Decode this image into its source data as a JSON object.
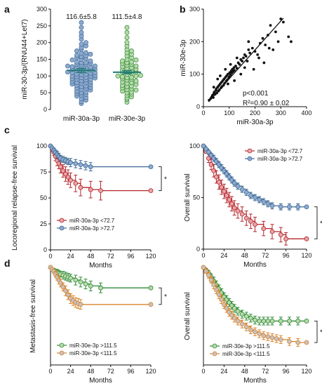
{
  "colors": {
    "blue": "#3d6a95",
    "blue_fill": "#8ea9cf",
    "green": "#2f8a36",
    "green_fill": "#b7d9a9",
    "red": "#b5262b",
    "red_fill": "#e6a3a8",
    "orange": "#d9852a",
    "grey_fill": "#c9c0c0",
    "mean_line": "#1e7a73",
    "black": "#111111"
  },
  "chart_data": [
    {
      "id": "panel-a",
      "panel_label": "a",
      "type": "scatter",
      "ylabel": "miR-30-3p/(RNU44+Let7)",
      "ylim": [
        0,
        300
      ],
      "yticks": [
        0,
        50,
        100,
        150,
        200,
        250,
        300
      ],
      "categories": [
        "miR-30a-3p",
        "miR-30e-3p"
      ],
      "summary_labels": [
        "116.6±5.8",
        "111.5±4.8"
      ],
      "means": [
        116.6,
        111.5
      ],
      "sems": [
        5.8,
        4.8
      ],
      "series": [
        {
          "values": [
            18,
            24,
            28,
            32,
            36,
            40,
            42,
            45,
            48,
            50,
            52,
            55,
            58,
            60,
            62,
            64,
            66,
            68,
            70,
            72,
            74,
            76,
            78,
            80,
            80,
            82,
            84,
            86,
            88,
            90,
            90,
            92,
            94,
            95,
            96,
            98,
            100,
            100,
            102,
            104,
            105,
            106,
            108,
            110,
            110,
            112,
            114,
            115,
            116,
            118,
            120,
            120,
            122,
            124,
            125,
            126,
            128,
            130,
            130,
            132,
            134,
            135,
            138,
            140,
            140,
            142,
            145,
            148,
            150,
            152,
            155,
            158,
            160,
            162,
            165,
            168,
            170,
            175,
            180,
            185,
            190,
            195,
            200,
            210,
            220,
            230,
            245,
            260
          ]
        },
        {
          "values": [
            22,
            30,
            34,
            38,
            42,
            46,
            50,
            52,
            55,
            58,
            60,
            62,
            65,
            68,
            70,
            72,
            75,
            78,
            80,
            82,
            85,
            88,
            90,
            92,
            95,
            96,
            98,
            100,
            100,
            102,
            105,
            108,
            110,
            112,
            114,
            115,
            118,
            120,
            122,
            125,
            128,
            130,
            132,
            135,
            138,
            140,
            142,
            145,
            148,
            150,
            155,
            160,
            165,
            170,
            175,
            180,
            190,
            200,
            215,
            230,
            245
          ]
        }
      ]
    },
    {
      "id": "panel-b",
      "panel_label": "b",
      "type": "scatter",
      "xlabel": "miR-30a-3p",
      "ylabel": "miR-30e-3p",
      "xlim": [
        0,
        400
      ],
      "ylim": [
        0,
        300
      ],
      "xticks": [
        0,
        100,
        200,
        300,
        400
      ],
      "yticks": [
        0,
        100,
        200,
        300
      ],
      "annotations": [
        "p<0.001",
        "R²=0.90 ± 0.02"
      ],
      "fit_line": {
        "x": [
          20,
          310
        ],
        "y": [
          15,
          272
        ]
      },
      "x": [
        22,
        28,
        32,
        35,
        38,
        40,
        42,
        45,
        48,
        50,
        52,
        55,
        58,
        60,
        62,
        65,
        68,
        70,
        72,
        75,
        78,
        80,
        82,
        85,
        88,
        90,
        92,
        95,
        98,
        100,
        102,
        105,
        108,
        110,
        112,
        115,
        118,
        120,
        125,
        130,
        135,
        140,
        145,
        150,
        155,
        160,
        165,
        170,
        175,
        180,
        190,
        200,
        210,
        220,
        230,
        240,
        250,
        260,
        280,
        290,
        300,
        310,
        330,
        340,
        40,
        55,
        65,
        85,
        95,
        105,
        120,
        130,
        145,
        160,
        175,
        195,
        215,
        235,
        255,
        270
      ],
      "y": [
        20,
        25,
        30,
        35,
        28,
        40,
        45,
        38,
        50,
        55,
        42,
        60,
        48,
        65,
        52,
        70,
        58,
        75,
        62,
        80,
        66,
        85,
        72,
        90,
        78,
        95,
        82,
        100,
        88,
        92,
        105,
        98,
        110,
        104,
        115,
        108,
        120,
        112,
        125,
        118,
        135,
        130,
        145,
        140,
        150,
        160,
        155,
        140,
        175,
        165,
        180,
        170,
        160,
        195,
        210,
        190,
        220,
        250,
        230,
        200,
        270,
        260,
        215,
        200,
        60,
        85,
        95,
        115,
        70,
        130,
        80,
        150,
        100,
        120,
        200,
        115,
        150,
        135,
        180,
        175
      ]
    },
    {
      "id": "panel-c-left",
      "panel_label": "c",
      "type": "line",
      "xlabel": "Months",
      "ylabel": "Locoregional relapse-free survival",
      "xlim": [
        0,
        120
      ],
      "ylim": [
        0,
        100
      ],
      "xticks": [
        0,
        24,
        48,
        72,
        96,
        120
      ],
      "yticks": [
        0,
        25,
        50,
        75,
        100
      ],
      "significance": "*",
      "series": [
        {
          "name": "miR-30a-3p <72.7",
          "x": [
            0,
            2,
            4,
            6,
            8,
            10,
            12,
            15,
            18,
            21,
            24,
            30,
            36,
            48,
            60,
            120
          ],
          "y": [
            100,
            97,
            94,
            90,
            86,
            83,
            80,
            76,
            73,
            70,
            67,
            64,
            60,
            58,
            57,
            57
          ],
          "err": [
            0,
            2,
            3,
            4,
            5,
            5,
            6,
            6,
            7,
            7,
            7,
            8,
            8,
            8,
            9,
            0
          ]
        },
        {
          "name": "miR-30a-3p >72.7",
          "x": [
            0,
            2,
            4,
            6,
            8,
            10,
            12,
            15,
            18,
            21,
            24,
            30,
            36,
            42,
            48,
            120
          ],
          "y": [
            100,
            98,
            96,
            94,
            92,
            90,
            88,
            87,
            86,
            85,
            84,
            83,
            82,
            81,
            80,
            80
          ],
          "err": [
            0,
            1,
            2,
            2,
            3,
            3,
            3,
            3,
            3,
            3,
            4,
            4,
            4,
            4,
            4,
            0
          ]
        }
      ]
    },
    {
      "id": "panel-c-right",
      "type": "line",
      "xlabel": "Months",
      "ylabel": "Overall survival",
      "xlim": [
        0,
        120
      ],
      "ylim": [
        0,
        100
      ],
      "xticks": [
        0,
        24,
        48,
        72,
        96,
        120
      ],
      "yticks": [
        0,
        50,
        100
      ],
      "significance": "*",
      "series": [
        {
          "name": "miR-30a-3p <72.7",
          "x": [
            0,
            3,
            6,
            9,
            12,
            15,
            18,
            21,
            24,
            27,
            30,
            33,
            36,
            40,
            45,
            50,
            55,
            60,
            70,
            80,
            90,
            96,
            120
          ],
          "y": [
            100,
            95,
            88,
            82,
            76,
            70,
            65,
            60,
            56,
            52,
            48,
            44,
            40,
            37,
            34,
            30,
            27,
            24,
            20,
            17,
            14,
            10,
            10
          ],
          "err": [
            0,
            2,
            4,
            5,
            6,
            6,
            7,
            7,
            7,
            7,
            7,
            7,
            7,
            7,
            7,
            7,
            7,
            7,
            7,
            7,
            7,
            6,
            0
          ]
        },
        {
          "name": "miR-30a-3p >72.7",
          "x": [
            0,
            3,
            6,
            9,
            12,
            15,
            18,
            21,
            24,
            27,
            30,
            33,
            36,
            40,
            45,
            50,
            55,
            60,
            65,
            70,
            75,
            80,
            90,
            100,
            110,
            120
          ],
          "y": [
            100,
            97,
            94,
            91,
            88,
            85,
            82,
            79,
            76,
            73,
            70,
            67,
            64,
            61,
            58,
            55,
            52,
            50,
            48,
            46,
            44,
            42,
            41,
            41,
            41,
            41
          ],
          "err": [
            0,
            1,
            2,
            2,
            3,
            3,
            3,
            3,
            3,
            3,
            3,
            3,
            3,
            3,
            3,
            3,
            3,
            3,
            3,
            3,
            3,
            3,
            3,
            3,
            3,
            0
          ]
        }
      ]
    },
    {
      "id": "panel-d-left",
      "panel_label": "d",
      "type": "line",
      "xlabel": "Months",
      "ylabel": "Metastasis-free survival",
      "xlim": [
        0,
        120
      ],
      "ylim": [
        0,
        100
      ],
      "xticks": [
        0,
        24,
        48,
        72,
        96,
        120
      ],
      "significance": "*",
      "series": [
        {
          "name": "miR-30e-3p >111.5",
          "x": [
            0,
            2,
            4,
            6,
            8,
            10,
            12,
            15,
            18,
            21,
            24,
            30,
            36,
            42,
            48,
            60,
            120
          ],
          "y": [
            100,
            98,
            97,
            96,
            95,
            94,
            93,
            92,
            91,
            90,
            89,
            87,
            85,
            83,
            81,
            79,
            79
          ],
          "err": [
            0,
            1,
            2,
            2,
            3,
            3,
            3,
            4,
            4,
            4,
            4,
            5,
            5,
            5,
            5,
            5,
            0
          ]
        },
        {
          "name": "miR-30e-3p <111.5",
          "x": [
            0,
            2,
            4,
            6,
            8,
            10,
            12,
            15,
            18,
            21,
            24,
            27,
            30,
            33,
            36,
            120
          ],
          "y": [
            100,
            98,
            96,
            93,
            90,
            87,
            84,
            80,
            76,
            72,
            68,
            66,
            64,
            63,
            62,
            62
          ],
          "err": [
            0,
            1,
            2,
            3,
            3,
            4,
            4,
            4,
            5,
            5,
            5,
            5,
            5,
            5,
            5,
            0
          ]
        }
      ]
    },
    {
      "id": "panel-d-right",
      "type": "line",
      "xlabel": "Months",
      "ylabel": "Overall survival",
      "xlim": [
        0,
        120
      ],
      "ylim": [
        0,
        100
      ],
      "xticks": [
        0,
        24,
        48,
        72,
        96,
        120
      ],
      "significance": "*",
      "series": [
        {
          "name": "miR-30e-3p >111.5",
          "x": [
            0,
            3,
            6,
            9,
            12,
            15,
            18,
            21,
            24,
            27,
            30,
            33,
            36,
            40,
            45,
            50,
            55,
            60,
            65,
            70,
            75,
            80,
            90,
            100,
            110,
            120
          ],
          "y": [
            100,
            97,
            94,
            90,
            86,
            82,
            78,
            74,
            70,
            67,
            64,
            61,
            58,
            55,
            52,
            50,
            48,
            46,
            45,
            45,
            45,
            45,
            45,
            45,
            45,
            45
          ],
          "err": [
            0,
            2,
            3,
            3,
            4,
            4,
            4,
            4,
            4,
            4,
            4,
            4,
            4,
            4,
            4,
            4,
            4,
            4,
            4,
            4,
            4,
            4,
            4,
            4,
            4,
            0
          ]
        },
        {
          "name": "miR-30e-3p <111.5",
          "x": [
            0,
            3,
            6,
            9,
            12,
            15,
            18,
            21,
            24,
            27,
            30,
            33,
            36,
            40,
            45,
            50,
            55,
            60,
            65,
            70,
            75,
            80,
            85,
            90,
            100,
            110,
            120
          ],
          "y": [
            100,
            96,
            92,
            87,
            82,
            77,
            72,
            67,
            62,
            58,
            54,
            51,
            48,
            45,
            42,
            39,
            36,
            34,
            32,
            30,
            29,
            28,
            27,
            26,
            24,
            23,
            23
          ],
          "err": [
            0,
            2,
            3,
            3,
            4,
            4,
            4,
            4,
            4,
            4,
            4,
            4,
            4,
            4,
            4,
            4,
            4,
            4,
            4,
            4,
            4,
            4,
            4,
            4,
            4,
            4,
            0
          ]
        }
      ]
    }
  ]
}
